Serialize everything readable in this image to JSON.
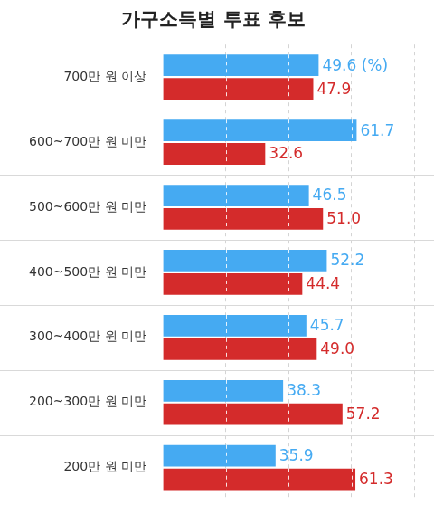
{
  "chart_data": {
    "type": "bar",
    "title": "가구소득별 투표 후보",
    "orientation": "horizontal",
    "categories": [
      "700만 원 이상",
      "600~700만 원 미만",
      "500~600만 원 미만",
      "400~500만 원 미만",
      "300~400만 원 미만",
      "200~300만 원 미만",
      "200만 원 미만"
    ],
    "series": [
      {
        "color": "#45aaf2",
        "values": [
          49.6,
          61.7,
          46.5,
          52.2,
          45.7,
          38.3,
          35.9
        ],
        "value_labels": [
          "49.6 (%)",
          "61.7",
          "46.5",
          "52.2",
          "45.7",
          "38.3",
          "35.9"
        ]
      },
      {
        "color": "#d42b2b",
        "values": [
          47.9,
          32.6,
          51.0,
          44.4,
          49.0,
          57.2,
          61.3
        ],
        "value_labels": [
          "47.9",
          "32.6",
          "51.0",
          "44.4",
          "49.0",
          "57.2",
          "61.3"
        ]
      }
    ],
    "xlim": [
      0,
      80
    ],
    "xticks": [
      0,
      20,
      40,
      60,
      80
    ],
    "grid": true,
    "data_labels": true,
    "tick_labels": "y"
  }
}
